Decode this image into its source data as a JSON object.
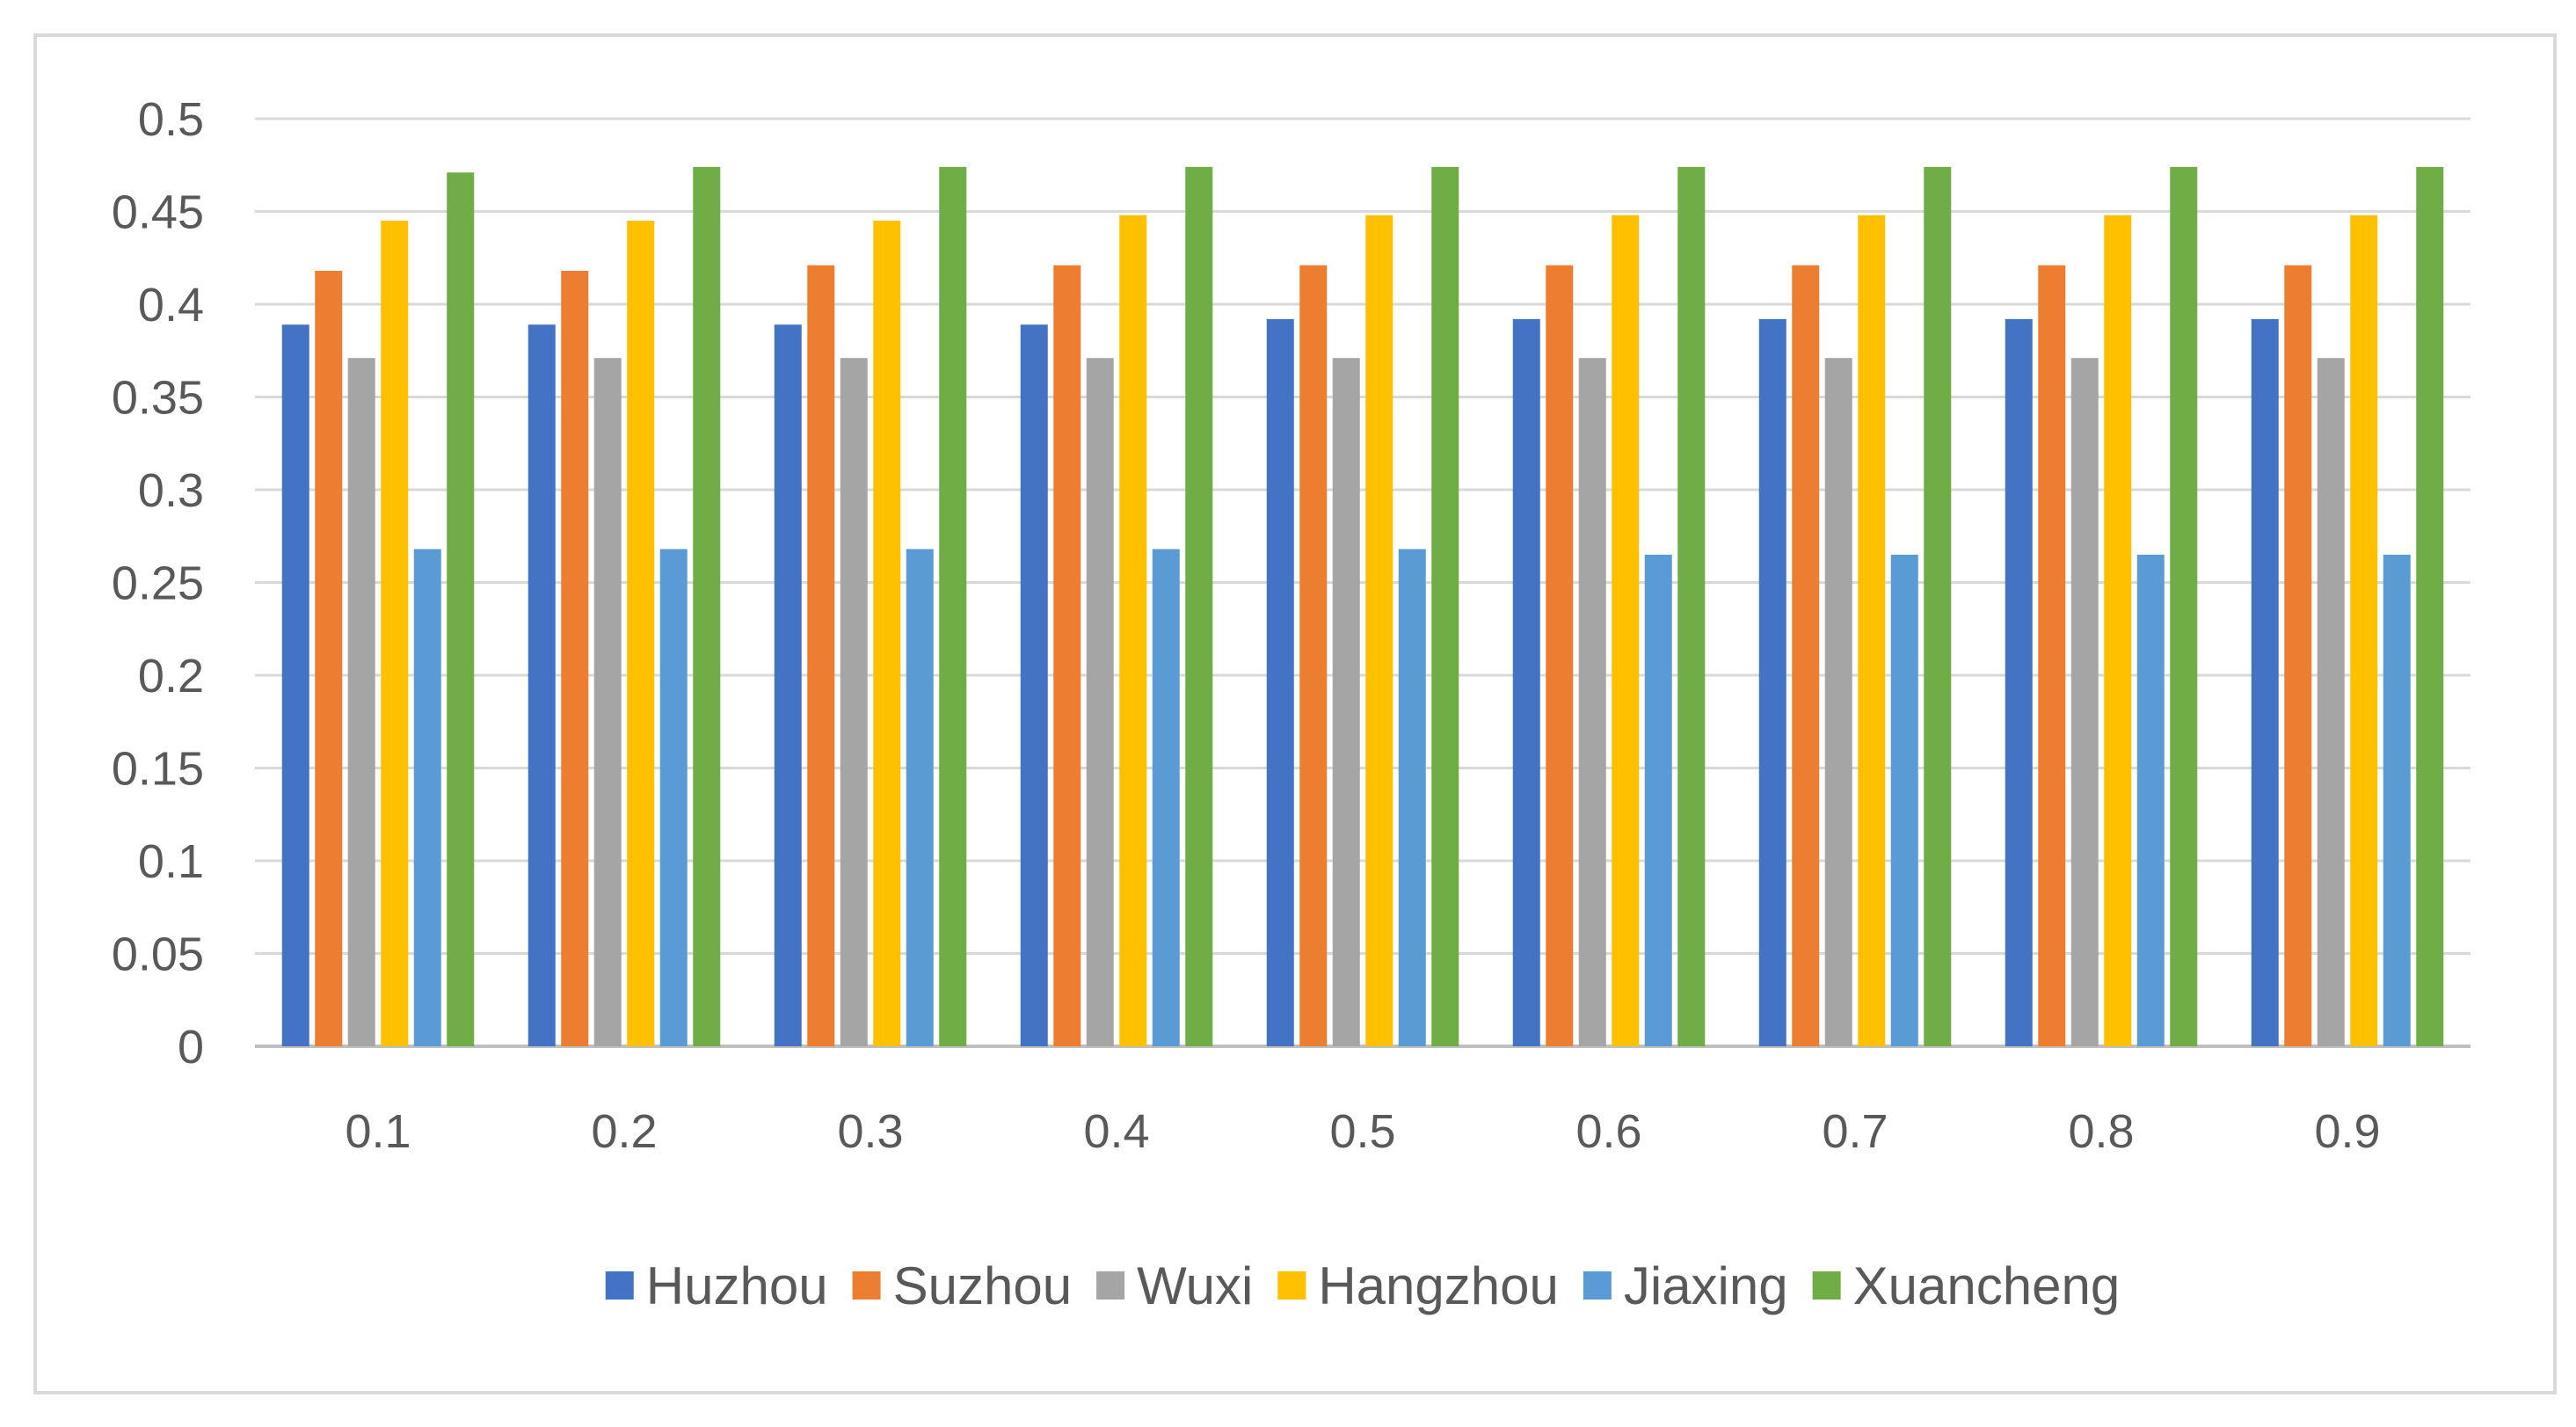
{
  "chart_data": {
    "type": "bar",
    "title": "",
    "xlabel": "",
    "ylabel": "",
    "ylim": [
      0,
      0.5
    ],
    "yticks": [
      "0",
      "0.05",
      "0.1",
      "0.15",
      "0.2",
      "0.25",
      "0.3",
      "0.35",
      "0.4",
      "0.45",
      "0.5"
    ],
    "grid": true,
    "legend_position": "bottom",
    "categories": [
      "0.1",
      "0.2",
      "0.3",
      "0.4",
      "0.5",
      "0.6",
      "0.7",
      "0.8",
      "0.9"
    ],
    "series": [
      {
        "name": "Huzhou",
        "color": "#4472c4",
        "values": [
          0.389,
          0.389,
          0.389,
          0.389,
          0.392,
          0.392,
          0.392,
          0.392,
          0.392
        ]
      },
      {
        "name": "Suzhou",
        "color": "#ed7d31",
        "values": [
          0.418,
          0.418,
          0.421,
          0.421,
          0.421,
          0.421,
          0.421,
          0.421,
          0.421
        ]
      },
      {
        "name": "Wuxi",
        "color": "#a5a5a5",
        "values": [
          0.371,
          0.371,
          0.371,
          0.371,
          0.371,
          0.371,
          0.371,
          0.371,
          0.371
        ]
      },
      {
        "name": "Hangzhou",
        "color": "#ffc000",
        "values": [
          0.445,
          0.445,
          0.445,
          0.448,
          0.448,
          0.448,
          0.448,
          0.448,
          0.448
        ]
      },
      {
        "name": "Jiaxing",
        "color": "#5b9bd5",
        "values": [
          0.268,
          0.268,
          0.268,
          0.268,
          0.268,
          0.265,
          0.265,
          0.265,
          0.265
        ]
      },
      {
        "name": "Xuancheng",
        "color": "#70ad47",
        "values": [
          0.471,
          0.474,
          0.474,
          0.474,
          0.474,
          0.474,
          0.474,
          0.474,
          0.474
        ]
      }
    ]
  }
}
